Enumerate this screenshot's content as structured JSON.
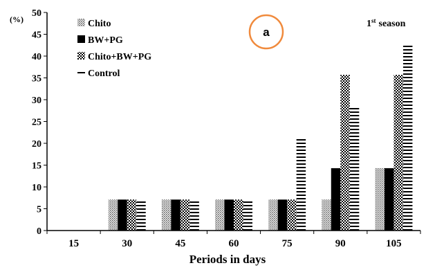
{
  "chart_data": {
    "type": "bar",
    "title": "",
    "season_label_prefix": "1",
    "season_label_sup": "st",
    "season_label_suffix": "season",
    "panel_label": "a",
    "xlabel": "Periods in days",
    "ylabel": "(%)",
    "ylim": [
      0,
      50
    ],
    "yticks": [
      0,
      5,
      10,
      15,
      20,
      25,
      30,
      35,
      40,
      45,
      50
    ],
    "categories": [
      "15",
      "30",
      "45",
      "60",
      "75",
      "90",
      "105"
    ],
    "grid": false,
    "legend_position": "top-left",
    "series": [
      {
        "name": "Chito",
        "pattern": "dots-gray",
        "values": [
          0,
          7.1,
          7.1,
          7.1,
          7.1,
          7.1,
          14.3
        ]
      },
      {
        "name": "BW+PG",
        "pattern": "solid-black",
        "values": [
          0,
          7.1,
          7.1,
          7.1,
          7.1,
          14.3,
          14.3
        ]
      },
      {
        "name": "Chito+BW+PG",
        "pattern": "checker-black",
        "values": [
          0,
          7.1,
          7.1,
          7.1,
          7.1,
          35.7,
          35.7
        ]
      },
      {
        "name": "Control",
        "pattern": "horizontal-lines",
        "values": [
          0,
          7.1,
          7.1,
          7.1,
          21.0,
          28.3,
          42.8
        ]
      }
    ],
    "colors": {
      "axis": "#000000",
      "circle": "#f08a3c"
    }
  }
}
